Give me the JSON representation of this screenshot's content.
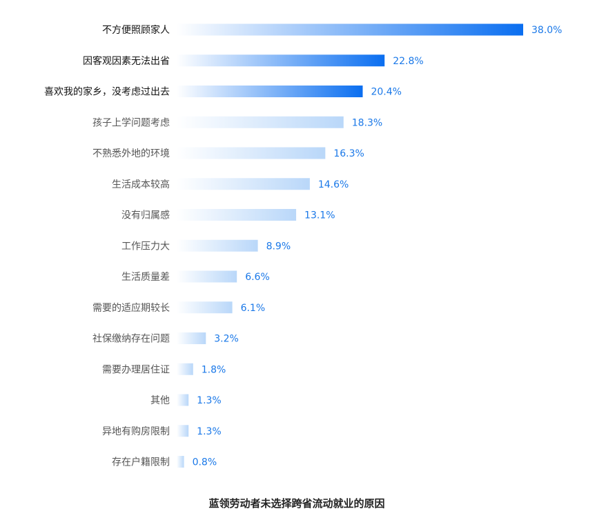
{
  "chart_data": {
    "type": "bar",
    "orientation": "horizontal",
    "title": "蓝领劳动者未选择跨省流动就业的原因",
    "categories": [
      "不方便照顾家人",
      "因客观因素无法出省",
      "喜欢我的家乡，没考虑过出去",
      "孩子上学问题考虑",
      "不熟悉外地的环境",
      "生活成本较高",
      "没有归属感",
      "工作压力大",
      "生活质量差",
      "需要的适应期较长",
      "社保缴纳存在问题",
      "需要办理居住证",
      "其他",
      "异地有购房限制",
      "存在户籍限制"
    ],
    "values": [
      38.0,
      22.8,
      20.4,
      18.3,
      16.3,
      14.6,
      13.1,
      8.9,
      6.6,
      6.1,
      3.2,
      1.8,
      1.3,
      1.3,
      0.8
    ],
    "value_labels": [
      "38.0%",
      "22.8%",
      "20.4%",
      "18.3%",
      "16.3%",
      "14.6%",
      "13.1%",
      "8.9%",
      "6.6%",
      "6.1%",
      "3.2%",
      "1.8%",
      "1.3%",
      "1.3%",
      "0.8%"
    ],
    "highlighted_top": 3,
    "colors": {
      "highlight_end": "#0a6ef0",
      "normal_end": "#b9d7f9",
      "gradient_start": "#ffffff",
      "value_label": "#1a78e8"
    },
    "grid": false,
    "legend": "none"
  }
}
